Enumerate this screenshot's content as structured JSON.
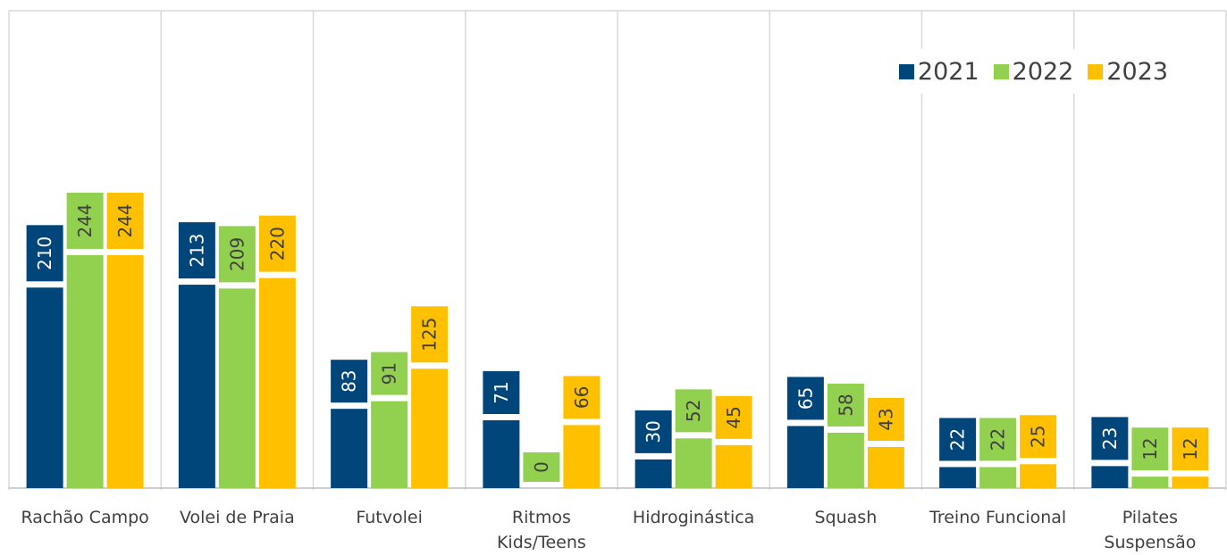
{
  "chart_data": {
    "type": "bar",
    "categories": [
      "Rachão Campo",
      "Volei de Praia",
      "Futvolei",
      "Ritmos Kids/Teens",
      "Hidroginástica",
      "Squash",
      "Treino Funcional",
      "Pilates Suspensão"
    ],
    "series": [
      {
        "name": "2021",
        "color": "#00467a",
        "values": [
          210,
          213,
          83,
          71,
          30,
          65,
          22,
          23
        ]
      },
      {
        "name": "2022",
        "color": "#92d050",
        "values": [
          244,
          209,
          91,
          0,
          52,
          58,
          22,
          12
        ]
      },
      {
        "name": "2023",
        "color": "#ffc000",
        "values": [
          244,
          220,
          125,
          66,
          45,
          43,
          25,
          12
        ]
      }
    ],
    "ylim": [
      0,
      500
    ],
    "legend": "upper right"
  }
}
